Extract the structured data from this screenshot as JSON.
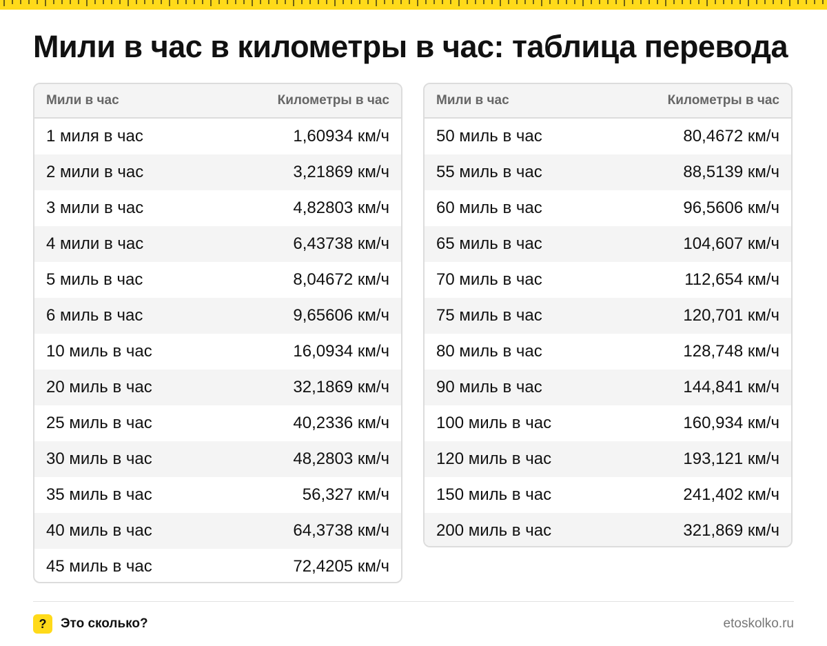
{
  "title": "Мили в час в километры в час: таблица перевода",
  "colors": {
    "accent": "#FFDA1A",
    "stripe": "#F4F4F4",
    "border": "#DCDCDC",
    "header_text": "#666666",
    "text": "#111111"
  },
  "tables": [
    {
      "headers": {
        "from": "Мили в час",
        "to": "Километры в час"
      },
      "rows": [
        {
          "from": "1 миля в час",
          "to": "1,60934 км/ч"
        },
        {
          "from": "2 мили в час",
          "to": "3,21869 км/ч"
        },
        {
          "from": "3 мили в час",
          "to": "4,82803 км/ч"
        },
        {
          "from": "4 мили в час",
          "to": "6,43738 км/ч"
        },
        {
          "from": "5 миль в час",
          "to": "8,04672 км/ч"
        },
        {
          "from": "6 миль в час",
          "to": "9,65606 км/ч"
        },
        {
          "from": "10 миль в час",
          "to": "16,0934 км/ч"
        },
        {
          "from": "20 миль в час",
          "to": "32,1869 км/ч"
        },
        {
          "from": "25 миль в час",
          "to": "40,2336 км/ч"
        },
        {
          "from": "30 миль в час",
          "to": "48,2803 км/ч"
        },
        {
          "from": "35 миль в час",
          "to": "56,327 км/ч"
        },
        {
          "from": "40 миль в час",
          "to": "64,3738 км/ч"
        },
        {
          "from": "45 миль в час",
          "to": "72,4205 км/ч"
        }
      ]
    },
    {
      "headers": {
        "from": "Мили в час",
        "to": "Километры в час"
      },
      "rows": [
        {
          "from": "50 миль в час",
          "to": "80,4672 км/ч"
        },
        {
          "from": "55 миль в час",
          "to": "88,5139 км/ч"
        },
        {
          "from": "60 миль в час",
          "to": "96,5606 км/ч"
        },
        {
          "from": "65 миль в час",
          "to": "104,607 км/ч"
        },
        {
          "from": "70 миль в час",
          "to": "112,654 км/ч"
        },
        {
          "from": "75 миль в час",
          "to": "120,701 км/ч"
        },
        {
          "from": "80 миль в час",
          "to": "128,748 км/ч"
        },
        {
          "from": "90 миль в час",
          "to": "144,841 км/ч"
        },
        {
          "from": "100 миль в час",
          "to": "160,934 км/ч"
        },
        {
          "from": "120 миль в час",
          "to": "193,121 км/ч"
        },
        {
          "from": "150 миль в час",
          "to": "241,402 км/ч"
        },
        {
          "from": "200 миль в час",
          "to": "321,869 км/ч"
        }
      ]
    }
  ],
  "footer": {
    "badge_icon": "question-mark-icon",
    "badge_glyph": "?",
    "brand": "Это сколько?",
    "site": "etoskolko.ru"
  }
}
